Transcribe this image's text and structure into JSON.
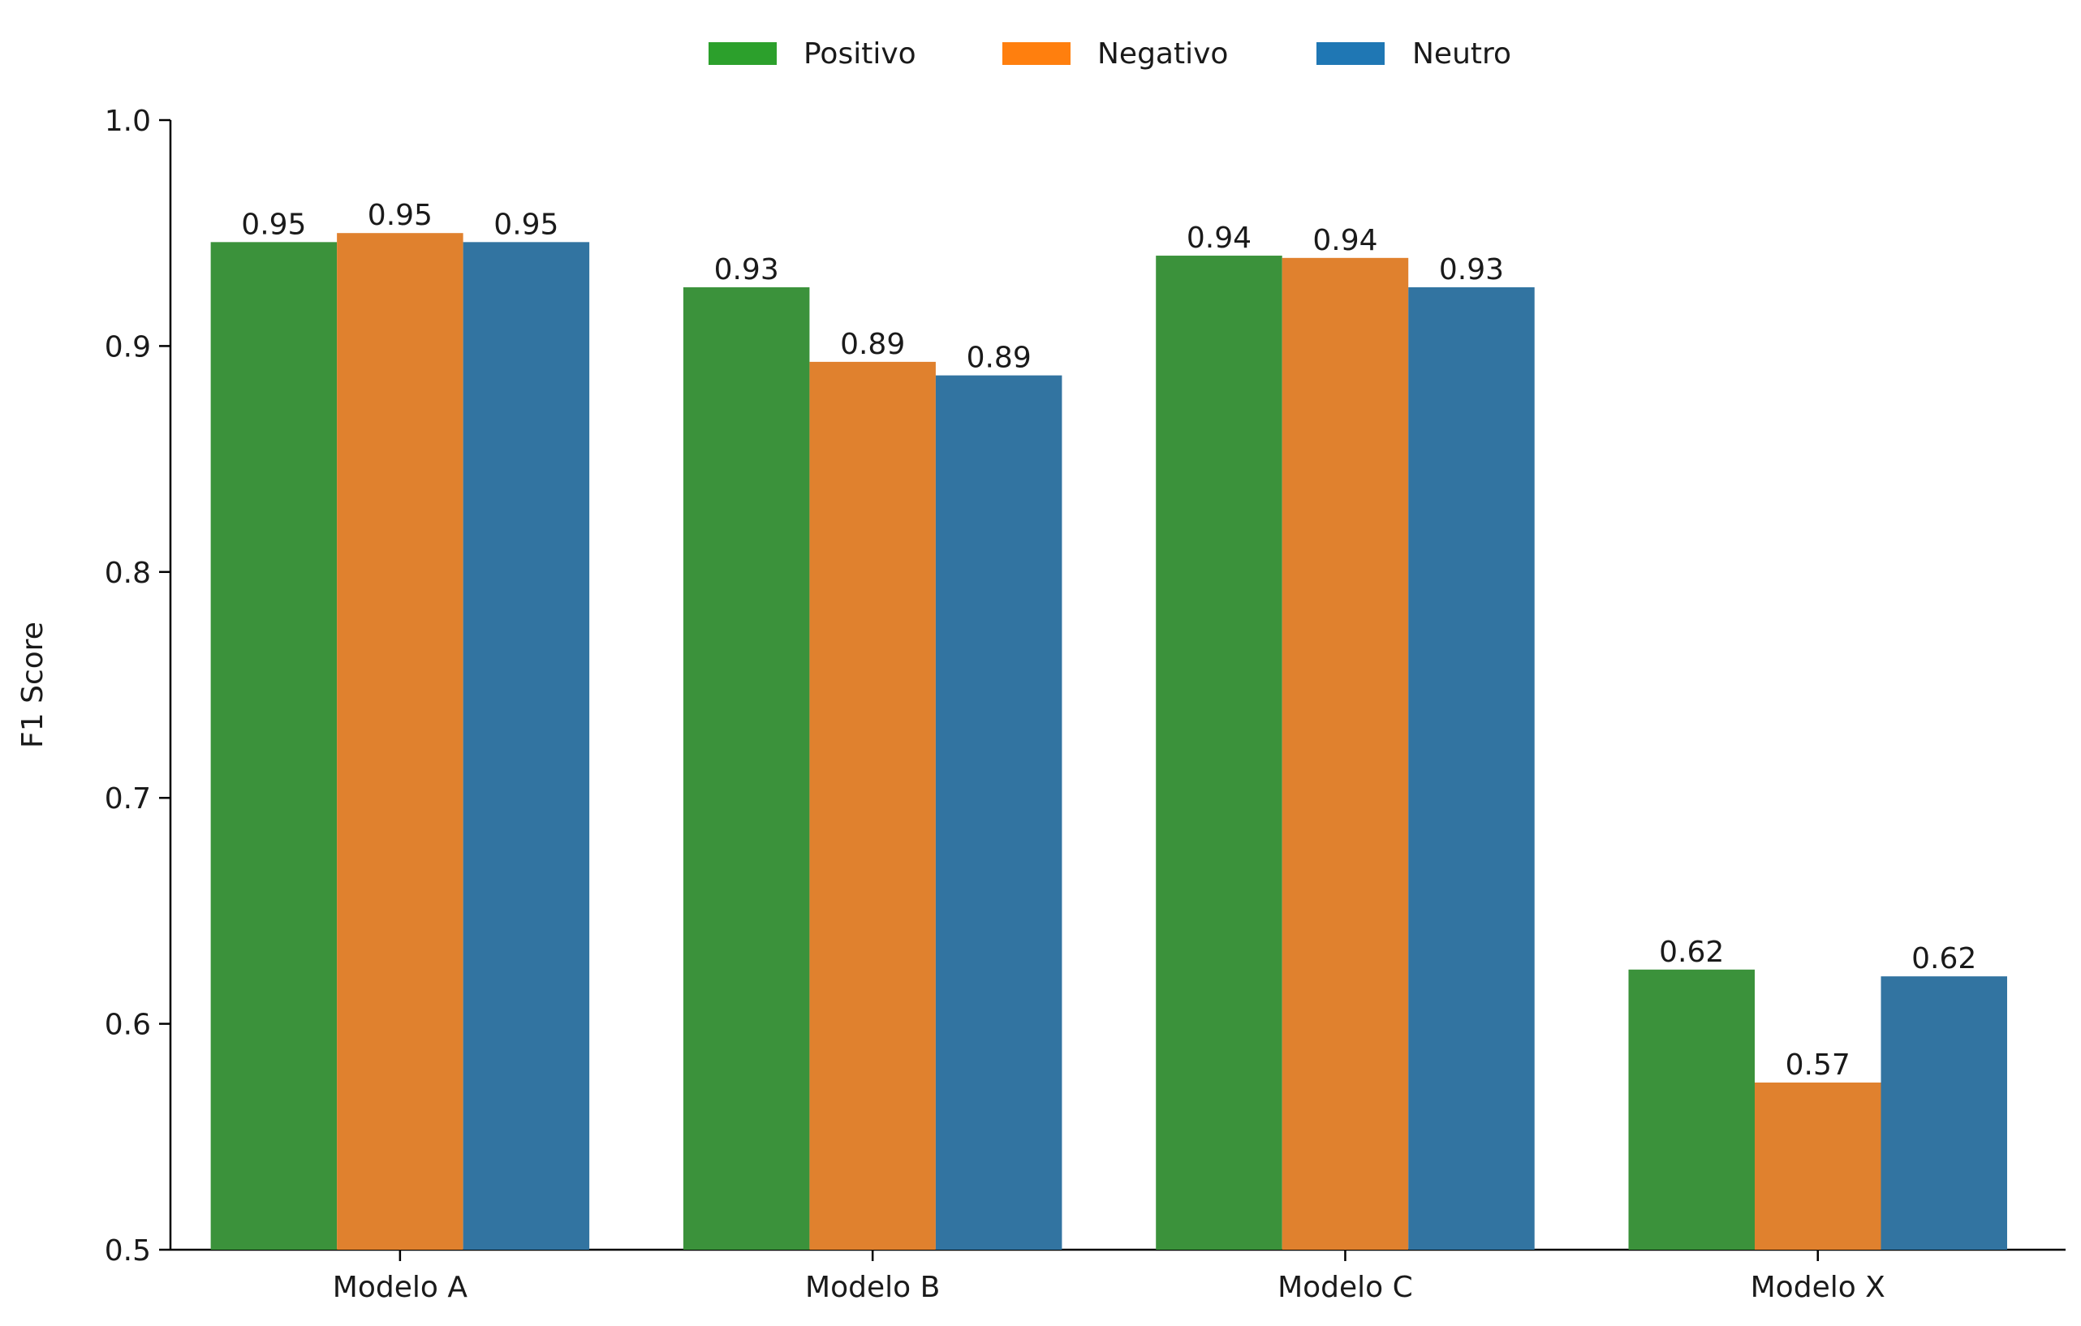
{
  "chart_data": {
    "type": "bar",
    "title": "",
    "xlabel": "",
    "ylabel": "F1 Score",
    "ylim": [
      0.5,
      1.0
    ],
    "yticks": [
      "0.5",
      "0.6",
      "0.7",
      "0.8",
      "0.9",
      "1.0"
    ],
    "categories": [
      "Modelo A",
      "Modelo B",
      "Modelo C",
      "Modelo X"
    ],
    "series": [
      {
        "name": "Positivo",
        "color": "#3b923b",
        "legend_color": "#2ca02c",
        "values": [
          0.946,
          0.926,
          0.94,
          0.624
        ],
        "labels": [
          "0.95",
          "0.93",
          "0.94",
          "0.62"
        ]
      },
      {
        "name": "Negativo",
        "color": "#e0812e",
        "legend_color": "#ff7f0e",
        "values": [
          0.95,
          0.893,
          0.939,
          0.574
        ],
        "labels": [
          "0.95",
          "0.89",
          "0.94",
          "0.57"
        ]
      },
      {
        "name": "Neutro",
        "color": "#3274a1",
        "legend_color": "#1f77b4",
        "values": [
          0.946,
          0.887,
          0.926,
          0.621
        ],
        "labels": [
          "0.95",
          "0.89",
          "0.93",
          "0.62"
        ]
      }
    ],
    "legend": "top-center",
    "grid": false
  }
}
